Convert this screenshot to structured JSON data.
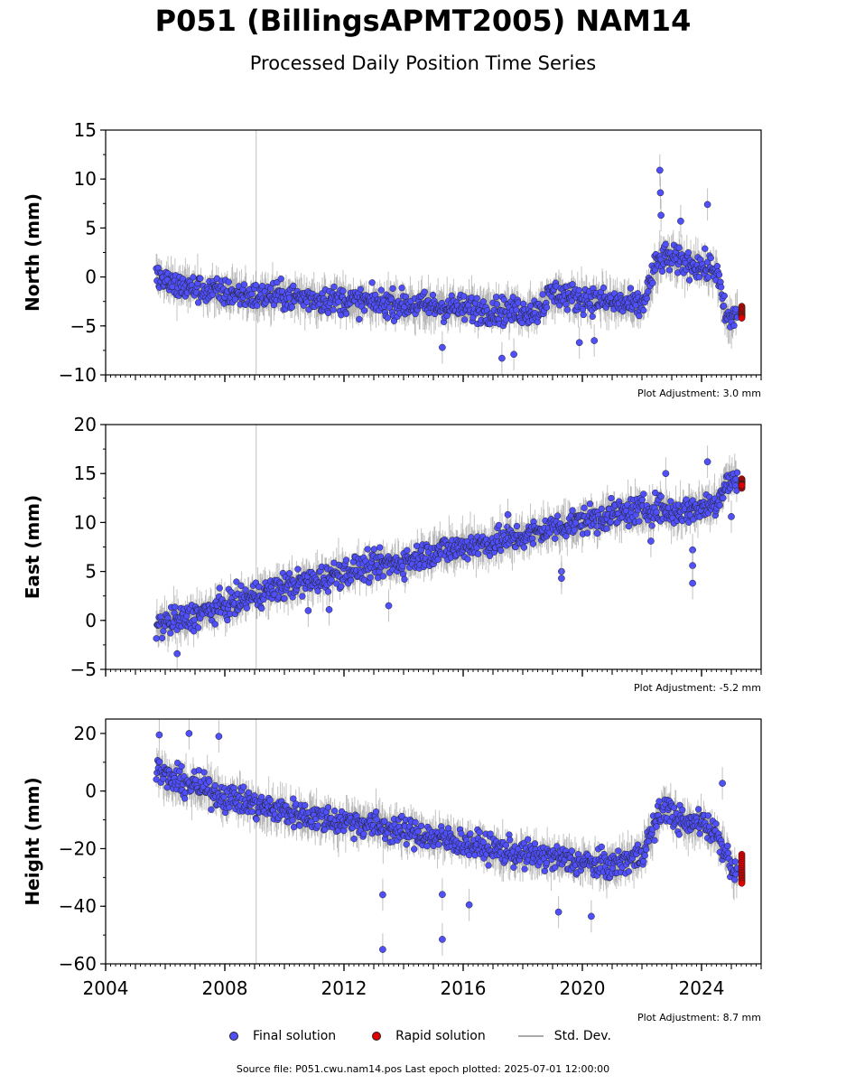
{
  "header": {
    "title": "P051 (BillingsAPMT2005) NAM14",
    "subtitle": "Processed Daily Position Time Series"
  },
  "legend": {
    "final_label": "Final solution",
    "rapid_label": "Rapid solution",
    "std_label": "Std. Dev."
  },
  "footer": {
    "source_text": "Source file: P051.cwu.nam14.pos  Last epoch plotted: 2025-07-01 12:00:00"
  },
  "colors": {
    "final": "#4f4ffb",
    "rapid": "#e00000",
    "std": "#aaaaaa",
    "marker_edge": "#222222",
    "event_line": "#cccccc"
  },
  "chart_data": [
    {
      "type": "scatter",
      "ylabel": "North (mm)",
      "adjustment": "Plot Adjustment: 3.0 mm",
      "xlim": [
        2004,
        2026
      ],
      "ylim": [
        -10,
        15
      ],
      "yticks": [
        -10,
        -5,
        0,
        5,
        10,
        15
      ],
      "xticks": [
        2004,
        2008,
        2012,
        2016,
        2020,
        2024
      ],
      "show_xtick_labels": false,
      "event_line_x": 2009.05,
      "series": [
        {
          "name": "Final solution",
          "x": [
            2005.7,
            2006.0,
            2006.5,
            2007.0,
            2007.5,
            2008.0,
            2008.5,
            2009.0,
            2009.5,
            2010.0,
            2010.5,
            2011.0,
            2011.5,
            2012.0,
            2012.5,
            2013.0,
            2013.5,
            2014.0,
            2014.5,
            2015.0,
            2015.5,
            2016.0,
            2016.5,
            2017.0,
            2017.5,
            2018.0,
            2018.5,
            2019.0,
            2019.5,
            2020.0,
            2020.5,
            2021.0,
            2021.5,
            2022.0,
            2022.5,
            2022.8,
            2023.0,
            2023.5,
            2024.0,
            2024.5,
            2024.8,
            2025.0,
            2025.2
          ],
          "y": [
            0.0,
            -0.5,
            -1.0,
            -1.2,
            -1.4,
            -1.6,
            -1.8,
            -2.0,
            -1.9,
            -2.0,
            -2.1,
            -2.2,
            -2.3,
            -2.4,
            -2.5,
            -2.6,
            -2.7,
            -2.8,
            -2.9,
            -3.0,
            -3.1,
            -3.2,
            -3.3,
            -3.4,
            -3.5,
            -3.5,
            -3.4,
            -1.5,
            -2.0,
            -2.2,
            -2.4,
            -2.6,
            -2.8,
            -3.0,
            1.5,
            2.0,
            1.8,
            1.5,
            1.0,
            0.8,
            -4.0,
            -4.5,
            -3.5
          ]
        },
        {
          "name": "Rapid solution",
          "x": [
            2025.3,
            2025.35,
            2025.4,
            2025.45,
            2025.5
          ],
          "y": [
            -3.0,
            -3.5,
            -4.0,
            -3.8,
            -4.2
          ]
        }
      ],
      "outliers": {
        "x": [
          2022.6,
          2022.62,
          2022.64,
          2023.3,
          2024.2,
          2017.3,
          2017.7,
          2015.3,
          2019.9,
          2020.4
        ],
        "y": [
          10.9,
          8.6,
          6.3,
          5.7,
          7.4,
          -8.3,
          -7.9,
          -7.2,
          -6.7,
          -6.5
        ]
      }
    },
    {
      "type": "scatter",
      "ylabel": "East (mm)",
      "adjustment": "Plot Adjustment: -5.2 mm",
      "xlim": [
        2004,
        2026
      ],
      "ylim": [
        -5,
        20
      ],
      "yticks": [
        -5,
        0,
        5,
        10,
        15,
        20
      ],
      "xticks": [
        2004,
        2008,
        2012,
        2016,
        2020,
        2024
      ],
      "show_xtick_labels": false,
      "event_line_x": 2009.05,
      "series": [
        {
          "name": "Final solution",
          "x": [
            2005.7,
            2006.0,
            2006.5,
            2007.0,
            2007.5,
            2008.0,
            2008.5,
            2009.0,
            2009.5,
            2010.0,
            2010.5,
            2011.0,
            2011.5,
            2012.0,
            2012.5,
            2013.0,
            2013.5,
            2014.0,
            2014.5,
            2015.0,
            2015.5,
            2016.0,
            2016.5,
            2017.0,
            2017.5,
            2018.0,
            2018.5,
            2019.0,
            2019.5,
            2020.0,
            2020.5,
            2021.0,
            2021.5,
            2022.0,
            2022.5,
            2023.0,
            2023.5,
            2024.0,
            2024.5,
            2024.8,
            2025.2
          ],
          "y": [
            -0.5,
            -0.3,
            0.0,
            0.5,
            1.0,
            1.5,
            2.0,
            2.5,
            3.0,
            3.5,
            3.8,
            4.0,
            4.5,
            5.0,
            5.3,
            5.5,
            5.8,
            6.0,
            6.5,
            7.0,
            7.2,
            7.5,
            7.8,
            8.0,
            8.3,
            8.5,
            9.0,
            9.5,
            9.8,
            10.2,
            10.5,
            10.8,
            11.0,
            11.3,
            11.5,
            11.0,
            11.3,
            11.5,
            12.0,
            14.0,
            14.3
          ]
        },
        {
          "name": "Rapid solution",
          "x": [
            2025.3,
            2025.35,
            2025.4,
            2025.45,
            2025.5
          ],
          "y": [
            13.5,
            14.0,
            14.5,
            14.0,
            13.8
          ]
        }
      ],
      "outliers": {
        "x": [
          2006.4,
          2010.8,
          2011.5,
          2013.5,
          2017.5,
          2019.3,
          2019.3,
          2020.5,
          2022.3,
          2022.8,
          2023.7,
          2023.7,
          2023.7,
          2024.2,
          2025.0
        ],
        "y": [
          -3.4,
          1.0,
          1.1,
          1.5,
          10.8,
          5.0,
          4.3,
          8.9,
          8.1,
          15.0,
          7.2,
          5.6,
          3.8,
          16.2,
          10.6
        ]
      }
    },
    {
      "type": "scatter",
      "ylabel": "Height (mm)",
      "adjustment": "Plot Adjustment: 8.7 mm",
      "xlim": [
        2004,
        2026
      ],
      "ylim": [
        -60,
        25
      ],
      "yticks": [
        -60,
        -40,
        -20,
        0,
        20
      ],
      "xticks": [
        2004,
        2008,
        2012,
        2016,
        2020,
        2024
      ],
      "show_xtick_labels": true,
      "event_line_x": 2009.05,
      "series": [
        {
          "name": "Final solution",
          "x": [
            2005.7,
            2006.0,
            2006.5,
            2007.0,
            2007.5,
            2008.0,
            2008.5,
            2009.0,
            2009.5,
            2010.0,
            2010.5,
            2011.0,
            2011.5,
            2012.0,
            2012.5,
            2013.0,
            2013.5,
            2014.0,
            2014.5,
            2015.0,
            2015.5,
            2016.0,
            2016.5,
            2017.0,
            2017.5,
            2018.0,
            2018.5,
            2019.0,
            2019.5,
            2020.0,
            2020.5,
            2021.0,
            2021.5,
            2022.0,
            2022.5,
            2022.8,
            2023.0,
            2023.5,
            2024.0,
            2024.5,
            2025.0,
            2025.2
          ],
          "y": [
            8.0,
            5.0,
            3.0,
            2.0,
            0.0,
            -2.0,
            -3.0,
            -5.0,
            -6.0,
            -7.0,
            -8.0,
            -9.0,
            -10.0,
            -10.5,
            -11.0,
            -12.0,
            -13.0,
            -14.0,
            -15.0,
            -16.0,
            -17.0,
            -18.0,
            -19.0,
            -20.0,
            -21.0,
            -22.0,
            -22.5,
            -23.0,
            -24.0,
            -25.0,
            -25.5,
            -26.0,
            -24.0,
            -22.0,
            -10.0,
            -5.0,
            -8.0,
            -12.0,
            -10.0,
            -15.0,
            -25.0,
            -30.0
          ]
        },
        {
          "name": "Rapid solution",
          "x": [
            2025.3,
            2025.35,
            2025.4,
            2025.45,
            2025.5
          ],
          "y": [
            -22.0,
            -25.0,
            -28.0,
            -30.0,
            -32.0
          ]
        }
      ],
      "outliers": {
        "x": [
          2005.8,
          2006.8,
          2007.8,
          2013.3,
          2013.3,
          2015.3,
          2015.3,
          2016.2,
          2019.2,
          2020.3,
          2024.7
        ],
        "y": [
          19.5,
          20.0,
          19.0,
          -55.0,
          -36.0,
          -51.5,
          -35.9,
          -39.5,
          -42.0,
          -43.5,
          2.7
        ]
      }
    }
  ]
}
